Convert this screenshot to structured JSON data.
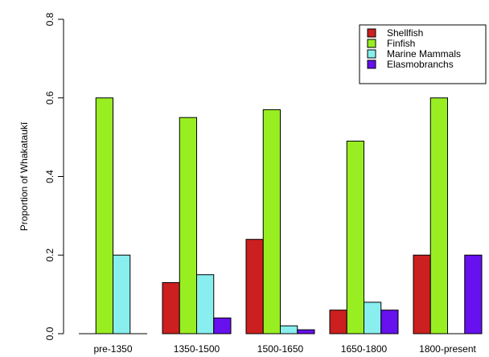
{
  "chart_data": {
    "type": "bar",
    "title": "",
    "xlabel": "",
    "ylabel": "Proportion of Whakataukī",
    "ylim": [
      0,
      0.8
    ],
    "yticks": [
      "0.0",
      "0.2",
      "0.4",
      "0.6",
      "0.8"
    ],
    "ytick_values": [
      0,
      0.2,
      0.4,
      0.6,
      0.8
    ],
    "categories": [
      "pre-1350",
      "1350-1500",
      "1500-1650",
      "1650-1800",
      "1800-present"
    ],
    "series": [
      {
        "name": "Shellfish",
        "color": "#cc1f1f",
        "values": [
          0,
          0.13,
          0.24,
          0.06,
          0.2
        ]
      },
      {
        "name": "Finfish",
        "color": "#99ee22",
        "values": [
          0.6,
          0.55,
          0.57,
          0.49,
          0.6
        ]
      },
      {
        "name": "Marine Mammals",
        "color": "#88eeee",
        "values": [
          0.2,
          0.15,
          0.02,
          0.08,
          0
        ]
      },
      {
        "name": "Elasmobranchs",
        "color": "#6611ee",
        "values": [
          0,
          0.04,
          0.01,
          0.06,
          0.2
        ]
      }
    ],
    "grid": false,
    "legend_position": "top-right"
  }
}
